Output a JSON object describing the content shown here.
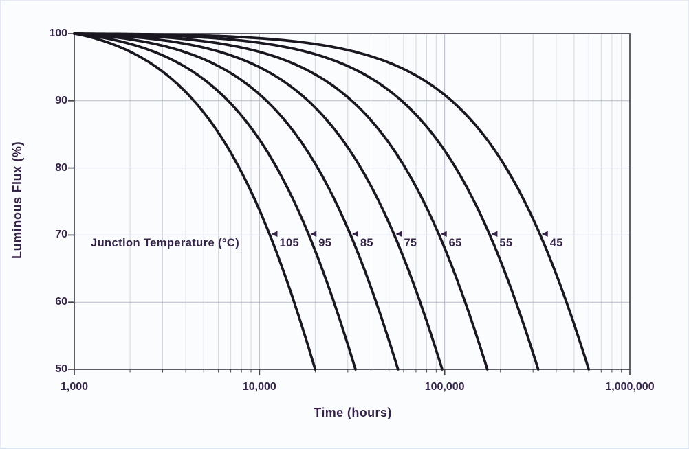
{
  "colors": {
    "text": "#352447",
    "curve": "#1a1720",
    "frame": "#45424c",
    "grid_major": "#b3b9c6",
    "grid_minor": "#d3d7e0",
    "background": "#fbfcfe"
  },
  "chart_data": {
    "type": "line",
    "title": "",
    "xlabel": "Time (hours)",
    "ylabel": "Luminous Flux (%)",
    "x_scale": "log",
    "xlim": [
      1000,
      1000000
    ],
    "ylim": [
      50,
      100
    ],
    "x_tick_labels": [
      "1,000",
      "10,000",
      "100,000",
      "1,000,000"
    ],
    "x_tick_values": [
      1000,
      10000,
      100000,
      1000000
    ],
    "y_ticks": [
      100,
      90,
      80,
      70,
      60,
      50
    ],
    "grid": "on",
    "annotation": "Junction Temperature (°C)",
    "legend_position": "labels-on-curves",
    "series_meaning": "LED luminous flux maintenance vs operating time for different junction temperatures; each curve decays from 100% at 1,000 h to 50% at its L50 lifetime",
    "series": [
      {
        "name": "105",
        "junction_temp_c": 105,
        "l50_hours": 20000,
        "points_hours_pct": [
          [
            1000,
            100
          ],
          [
            4400,
            90
          ],
          [
            7600,
            80
          ],
          [
            11400,
            70
          ],
          [
            15400,
            60
          ],
          [
            20000,
            50
          ]
        ]
      },
      {
        "name": "95",
        "junction_temp_c": 95,
        "l50_hours": 33000,
        "points_hours_pct": [
          [
            1000,
            100
          ],
          [
            6800,
            90
          ],
          [
            12100,
            80
          ],
          [
            18500,
            70
          ],
          [
            25300,
            60
          ],
          [
            33000,
            50
          ]
        ]
      },
      {
        "name": "85",
        "junction_temp_c": 85,
        "l50_hours": 56000,
        "points_hours_pct": [
          [
            1000,
            100
          ],
          [
            10900,
            90
          ],
          [
            20100,
            80
          ],
          [
            31100,
            70
          ],
          [
            42700,
            60
          ],
          [
            56000,
            50
          ]
        ]
      },
      {
        "name": "75",
        "junction_temp_c": 75,
        "l50_hours": 97000,
        "points_hours_pct": [
          [
            1000,
            100
          ],
          [
            18300,
            90
          ],
          [
            34300,
            80
          ],
          [
            53500,
            70
          ],
          [
            73800,
            60
          ],
          [
            97000,
            50
          ]
        ]
      },
      {
        "name": "65",
        "junction_temp_c": 65,
        "l50_hours": 170000,
        "points_hours_pct": [
          [
            1000,
            100
          ],
          [
            31400,
            90
          ],
          [
            59600,
            80
          ],
          [
            93400,
            70
          ],
          [
            129100,
            60
          ],
          [
            170000,
            50
          ]
        ]
      },
      {
        "name": "55",
        "junction_temp_c": 55,
        "l50_hours": 320000,
        "points_hours_pct": [
          [
            1000,
            100
          ],
          [
            58400,
            90
          ],
          [
            111600,
            80
          ],
          [
            175400,
            70
          ],
          [
            242800,
            60
          ],
          [
            320000,
            50
          ]
        ]
      },
      {
        "name": "45",
        "junction_temp_c": 45,
        "l50_hours": 600000,
        "points_hours_pct": [
          [
            1000,
            100
          ],
          [
            108800,
            90
          ],
          [
            208300,
            80
          ],
          [
            328400,
            70
          ],
          [
            455100,
            60
          ],
          [
            600000,
            50
          ]
        ]
      }
    ],
    "curve_model": "pct(t) = 100 * 0.5 ^ (((t - 1000) / (l50 - 1000)) ^ 1.1)"
  }
}
